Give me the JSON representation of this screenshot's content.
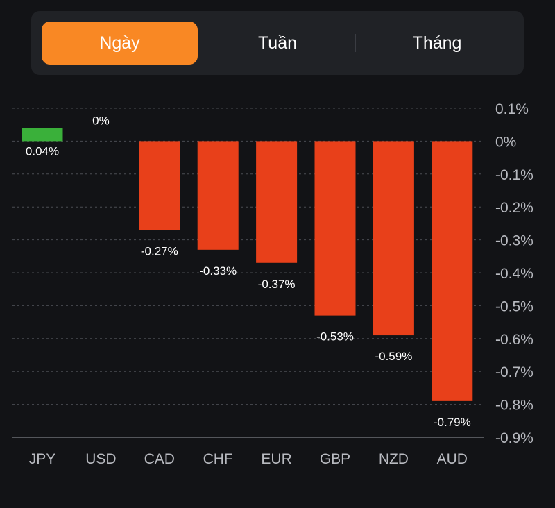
{
  "tabs": [
    {
      "label": "Ngày",
      "active": true
    },
    {
      "label": "Tuần",
      "active": false
    },
    {
      "label": "Tháng",
      "active": false
    }
  ],
  "colors": {
    "accent": "#f98824",
    "positive": "#3ab03a",
    "negative": "#e8401a",
    "background": "#121316",
    "panel": "#202226"
  },
  "chart_data": {
    "type": "bar",
    "categories": [
      "JPY",
      "USD",
      "CAD",
      "CHF",
      "EUR",
      "GBP",
      "NZD",
      "AUD"
    ],
    "values": [
      0.04,
      0,
      -0.27,
      -0.33,
      -0.37,
      -0.53,
      -0.59,
      -0.79
    ],
    "data_labels": [
      "0.04%",
      "0%",
      "-0.27%",
      "-0.33%",
      "-0.37%",
      "-0.53%",
      "-0.59%",
      "-0.79%"
    ],
    "ylim": [
      -0.9,
      0.1
    ],
    "y_ticks": [
      0.1,
      0,
      -0.1,
      -0.2,
      -0.3,
      -0.4,
      -0.5,
      -0.6,
      -0.7,
      -0.8,
      -0.9
    ],
    "y_tick_labels": [
      "0.1%",
      "0%",
      "-0.1%",
      "-0.2%",
      "-0.3%",
      "-0.4%",
      "-0.5%",
      "-0.6%",
      "-0.7%",
      "-0.8%",
      "-0.9%"
    ],
    "grid": true,
    "title": "",
    "xlabel": "",
    "ylabel": ""
  }
}
